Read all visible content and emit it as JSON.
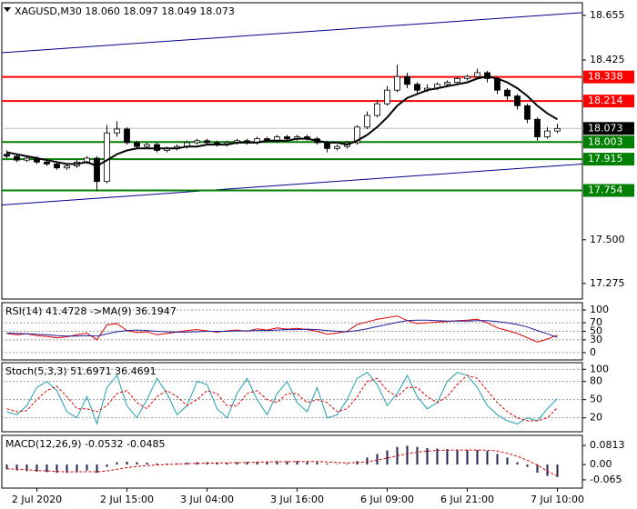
{
  "chart_data": [
    {
      "type": "candlestick",
      "title": "XAGUSD,M30  18.060 18.097 18.049 18.073",
      "open": [
        17.94,
        17.93,
        17.91,
        17.92,
        17.9,
        17.89,
        17.87,
        17.88,
        17.9,
        17.92,
        17.8,
        18.05,
        18.07,
        18.0,
        17.98,
        17.99,
        17.96,
        17.97,
        17.98,
        18.0,
        18.01,
        18.0,
        17.99,
        18.0,
        18.01,
        18.0,
        18.02,
        18.01,
        18.03,
        18.02,
        18.03,
        18.02,
        18.0,
        17.97,
        17.98,
        18.0,
        18.08,
        18.14,
        18.2,
        18.27,
        18.34,
        18.3,
        18.27,
        18.28,
        18.3,
        18.31,
        18.33,
        18.34,
        18.36,
        18.33,
        18.27,
        18.24,
        18.19,
        18.12,
        18.03,
        18.06
      ],
      "high": [
        17.96,
        17.94,
        17.93,
        17.93,
        17.91,
        17.9,
        17.89,
        17.91,
        17.93,
        17.93,
        18.09,
        18.11,
        18.08,
        18.01,
        18.0,
        18.0,
        17.98,
        17.99,
        18.01,
        18.02,
        18.02,
        18.01,
        18.01,
        18.02,
        18.02,
        18.03,
        18.03,
        18.04,
        18.04,
        18.04,
        18.04,
        18.03,
        18.01,
        17.99,
        18.01,
        18.09,
        18.16,
        18.22,
        18.29,
        18.4,
        18.36,
        18.31,
        18.3,
        18.31,
        18.32,
        18.34,
        18.35,
        18.38,
        18.37,
        18.34,
        18.28,
        18.25,
        18.2,
        18.13,
        18.08,
        18.097
      ],
      "low": [
        17.92,
        17.9,
        17.9,
        17.89,
        17.88,
        17.86,
        17.86,
        17.87,
        17.89,
        17.75,
        17.79,
        18.03,
        17.99,
        17.97,
        17.97,
        17.95,
        17.95,
        17.96,
        17.97,
        17.99,
        17.99,
        17.98,
        17.98,
        17.99,
        17.99,
        17.99,
        18.0,
        18.0,
        18.01,
        18.01,
        18.01,
        17.99,
        17.95,
        17.96,
        17.97,
        17.99,
        18.07,
        18.13,
        18.19,
        18.26,
        18.28,
        18.25,
        18.26,
        18.27,
        18.29,
        18.3,
        18.32,
        18.33,
        18.31,
        18.25,
        18.22,
        18.17,
        18.1,
        18.01,
        18.02,
        18.049
      ],
      "close": [
        17.93,
        17.91,
        17.92,
        17.9,
        17.89,
        17.87,
        17.88,
        17.9,
        17.92,
        17.8,
        18.05,
        18.07,
        18.0,
        17.98,
        17.99,
        17.96,
        17.97,
        17.98,
        18.0,
        18.01,
        18.0,
        17.99,
        18.0,
        18.01,
        18.0,
        18.02,
        18.01,
        18.03,
        18.02,
        18.03,
        18.02,
        18.0,
        17.97,
        17.98,
        18.0,
        18.08,
        18.14,
        18.2,
        18.27,
        18.34,
        18.3,
        18.27,
        18.28,
        18.3,
        18.31,
        18.33,
        18.34,
        18.36,
        18.33,
        18.27,
        18.24,
        18.19,
        18.12,
        18.03,
        18.06,
        18.073
      ],
      "ma": {
        "color": "#000000",
        "values": [
          17.95,
          17.94,
          17.93,
          17.92,
          17.91,
          17.9,
          17.89,
          17.89,
          17.9,
          17.88,
          17.91,
          17.94,
          17.96,
          17.97,
          17.97,
          17.97,
          17.97,
          17.97,
          17.98,
          17.98,
          17.99,
          17.99,
          17.99,
          18.0,
          18.0,
          18.0,
          18.01,
          18.01,
          18.01,
          18.02,
          18.02,
          18.01,
          18.0,
          18.0,
          17.99,
          18.01,
          18.04,
          18.08,
          18.13,
          18.19,
          18.23,
          18.25,
          18.27,
          18.28,
          18.29,
          18.3,
          18.31,
          18.33,
          18.34,
          18.33,
          18.31,
          18.28,
          18.24,
          18.19,
          18.15,
          18.12
        ]
      },
      "levels": [
        {
          "value": 18.338,
          "color": "#ff0000"
        },
        {
          "value": 18.214,
          "color": "#ff0000"
        },
        {
          "value": 18.073,
          "color": "#000000",
          "line_color": "#c0c0c0"
        },
        {
          "value": 18.003,
          "color": "#008000"
        },
        {
          "value": 17.915,
          "color": "#008000"
        },
        {
          "value": 17.754,
          "color": "#008000"
        }
      ],
      "channel": [
        {
          "color": "#00008b",
          "values": [
            18.463,
            18.669
          ]
        },
        {
          "color": "#00008b",
          "values": [
            17.679,
            17.89
          ]
        }
      ],
      "ylim": [
        17.195,
        18.72
      ],
      "yticks": [
        18.655,
        18.425,
        {
          "value": 17.5,
          "label": "17.500"
        },
        17.275
      ],
      "xticks": [
        {
          "value": 3,
          "label": "2 Jul 2020"
        },
        {
          "value": 12,
          "label": "2 Jul 15:00"
        },
        {
          "value": 20,
          "label": "3 Jul 04:00"
        },
        {
          "value": 29,
          "label": "3 Jul 16:00"
        },
        {
          "value": 38,
          "label": "6 Jul 09:00"
        },
        {
          "value": 46,
          "label": "6 Jul 21:00"
        },
        {
          "value": 55,
          "label": "7 Jul 10:00"
        }
      ],
      "grid": false
    },
    {
      "type": "line",
      "title": "RSI(14) 41.4728 ->MA(9) 36.1947",
      "series": [
        {
          "color": "#e00000",
          "values": [
            45,
            42,
            44,
            40,
            38,
            35,
            37,
            42,
            46,
            30,
            65,
            68,
            52,
            47,
            49,
            42,
            45,
            48,
            52,
            54,
            51,
            48,
            51,
            53,
            50,
            56,
            53,
            58,
            55,
            57,
            54,
            50,
            43,
            46,
            50,
            66,
            72,
            78,
            82,
            86,
            75,
            68,
            70,
            72,
            73,
            75,
            76,
            78,
            70,
            58,
            52,
            45,
            35,
            25,
            32,
            41
          ]
        },
        {
          "color": "#1f1f9f",
          "values": [
            46,
            45,
            44,
            43,
            42,
            40,
            39,
            39,
            40,
            39,
            44,
            49,
            52,
            53,
            52,
            50,
            49,
            48,
            48,
            49,
            50,
            50,
            50,
            51,
            51,
            52,
            52,
            53,
            54,
            54,
            55,
            54,
            52,
            50,
            49,
            52,
            56,
            61,
            66,
            71,
            75,
            76,
            76,
            75,
            74,
            74,
            74,
            75,
            75,
            73,
            70,
            66,
            60,
            52,
            44,
            36
          ]
        }
      ],
      "ylim": [
        -17,
        117
      ],
      "yticks": [
        100,
        70,
        50,
        30,
        0
      ],
      "grid": true
    },
    {
      "type": "line",
      "title": "Stoch(5,3,3) 51.6971 36.4691",
      "series": [
        {
          "color": "#20a0b0",
          "values": [
            30,
            25,
            40,
            70,
            80,
            65,
            30,
            20,
            55,
            10,
            70,
            90,
            40,
            20,
            50,
            85,
            60,
            25,
            40,
            80,
            75,
            35,
            20,
            60,
            85,
            50,
            25,
            60,
            80,
            45,
            30,
            70,
            20,
            25,
            50,
            85,
            95,
            75,
            40,
            60,
            90,
            55,
            35,
            45,
            80,
            95,
            90,
            70,
            40,
            25,
            15,
            10,
            20,
            15,
            35,
            51.7
          ]
        },
        {
          "color": "#e00000",
          "dash": true,
          "values": [
            35,
            30,
            32,
            50,
            65,
            72,
            55,
            35,
            35,
            30,
            40,
            60,
            65,
            45,
            35,
            55,
            65,
            55,
            40,
            50,
            65,
            60,
            40,
            40,
            60,
            65,
            50,
            45,
            60,
            60,
            45,
            50,
            45,
            30,
            35,
            55,
            80,
            85,
            65,
            55,
            70,
            70,
            55,
            45,
            55,
            75,
            90,
            85,
            65,
            45,
            30,
            20,
            15,
            15,
            20,
            36.5
          ]
        }
      ],
      "ylim": [
        -3,
        111
      ],
      "yticks": [
        100,
        80,
        50,
        20
      ],
      "grid": true
    },
    {
      "type": "bar",
      "title": "MACD(12,26,9) -0.0532 -0.0485",
      "color": "#202050",
      "values": [
        -0.02,
        -0.025,
        -0.028,
        -0.03,
        -0.032,
        -0.035,
        -0.035,
        -0.03,
        -0.025,
        -0.035,
        -0.01,
        0.01,
        0.012,
        0.01,
        0.008,
        0.005,
        0.004,
        0.005,
        0.008,
        0.01,
        0.01,
        0.009,
        0.008,
        0.01,
        0.011,
        0.012,
        0.013,
        0.015,
        0.014,
        0.015,
        0.014,
        0.01,
        0.004,
        0.002,
        0.003,
        0.015,
        0.03,
        0.045,
        0.06,
        0.075,
        0.08,
        0.075,
        0.07,
        0.068,
        0.066,
        0.064,
        0.062,
        0.062,
        0.058,
        0.045,
        0.03,
        0.01,
        -0.01,
        -0.035,
        -0.048,
        -0.0532
      ],
      "signal": {
        "color": "#e00000",
        "dash": true,
        "values": [
          -0.018,
          -0.02,
          -0.022,
          -0.025,
          -0.027,
          -0.029,
          -0.031,
          -0.031,
          -0.03,
          -0.031,
          -0.027,
          -0.02,
          -0.013,
          -0.008,
          -0.004,
          -0.002,
          0,
          0.002,
          0.004,
          0.005,
          0.006,
          0.007,
          0.007,
          0.008,
          0.009,
          0.01,
          0.011,
          0.012,
          0.012,
          0.013,
          0.013,
          0.013,
          0.011,
          0.009,
          0.007,
          0.008,
          0.012,
          0.019,
          0.027,
          0.037,
          0.046,
          0.053,
          0.057,
          0.06,
          0.061,
          0.062,
          0.062,
          0.062,
          0.061,
          0.058,
          0.048,
          0.035,
          0.018,
          -0.002,
          -0.028,
          -0.0485
        ]
      },
      "ylim": [
        -0.1,
        0.124
      ],
      "yticks": [
        0.0813,
        {
          "value": 0,
          "label": "0.00"
        },
        -0.065
      ],
      "grid": false
    }
  ]
}
